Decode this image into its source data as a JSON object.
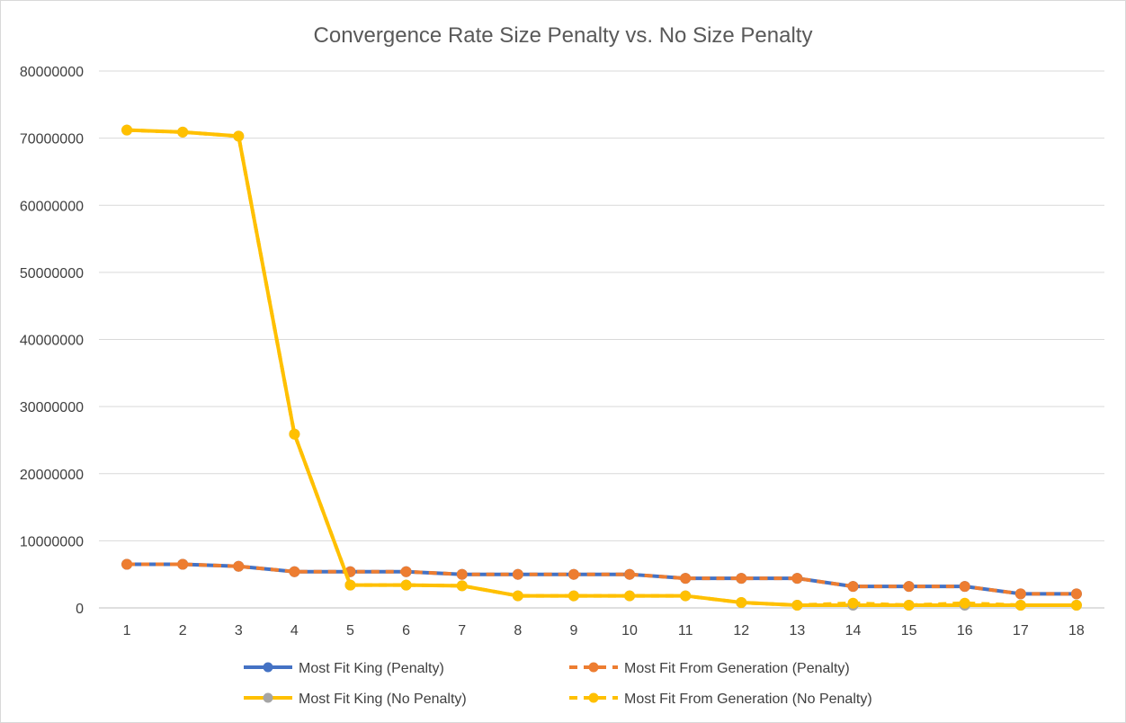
{
  "chart_data": {
    "type": "line",
    "title": "Convergence Rate Size Penalty vs. No Size Penalty",
    "xlabel": "",
    "ylabel": "",
    "categories": [
      "1",
      "2",
      "3",
      "4",
      "5",
      "6",
      "7",
      "8",
      "9",
      "10",
      "11",
      "12",
      "13",
      "14",
      "15",
      "16",
      "17",
      "18"
    ],
    "ylim": [
      0,
      80000000
    ],
    "yticks": [
      "0",
      "10000000",
      "20000000",
      "30000000",
      "40000000",
      "50000000",
      "60000000",
      "70000000",
      "80000000"
    ],
    "grid": true,
    "legend_position": "bottom",
    "series": [
      {
        "name": "Most Fit King (Penalty)",
        "color": "#4472C4",
        "dash": false,
        "values": [
          6500000,
          6500000,
          6200000,
          5400000,
          5400000,
          5400000,
          5000000,
          5000000,
          5000000,
          5000000,
          4400000,
          4400000,
          4400000,
          3200000,
          3200000,
          3200000,
          2100000,
          2100000
        ]
      },
      {
        "name": "Most Fit From Generation (Penalty)",
        "color": "#ED7D31",
        "dash": true,
        "values": [
          6500000,
          6500000,
          6200000,
          5400000,
          5400000,
          5400000,
          5000000,
          5000000,
          5000000,
          5000000,
          4400000,
          4400000,
          4400000,
          3200000,
          3200000,
          3200000,
          2100000,
          2100000
        ]
      },
      {
        "name": "Most Fit King (No Penalty)",
        "color": "#FFC000",
        "marker_color": "#A5A5A5",
        "dash": false,
        "values": [
          71200000,
          70900000,
          70300000,
          25900000,
          3400000,
          3400000,
          3300000,
          1800000,
          1800000,
          1800000,
          1800000,
          800000,
          400000,
          400000,
          400000,
          400000,
          400000,
          400000
        ]
      },
      {
        "name": "Most Fit From Generation (No Penalty)",
        "color": "#FFC000",
        "dash": true,
        "values": [
          71200000,
          70900000,
          70300000,
          25900000,
          3400000,
          3400000,
          3300000,
          1800000,
          1800000,
          1800000,
          1800000,
          800000,
          400000,
          700000,
          400000,
          700000,
          400000,
          400000
        ]
      }
    ]
  }
}
